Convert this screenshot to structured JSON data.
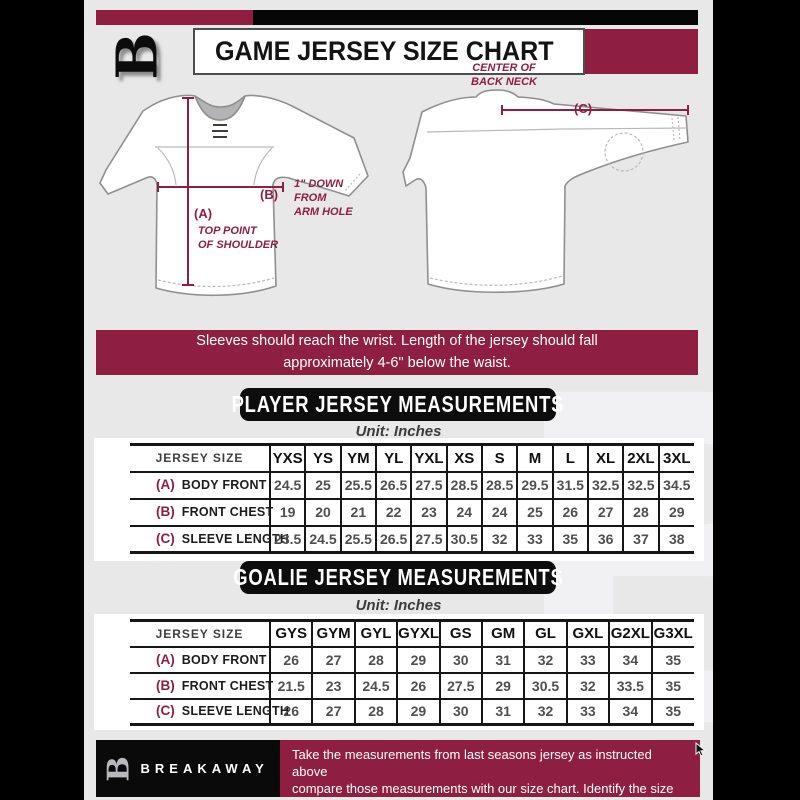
{
  "colors": {
    "maroon": "#8e1f43",
    "banner_black": "#0d0d0d",
    "background": "#e8e8e9",
    "side_band": "#000000"
  },
  "header": {
    "title": "GAME JERSEY SIZE CHART",
    "logo": "breakaway-b-logo",
    "logo_glyph": "B"
  },
  "diagram": {
    "front_view": {
      "a_key": "(A)",
      "a_label": "TOP POINT\nOF SHOULDER",
      "b_key": "(B)",
      "b_label": "1\" DOWN\nFROM\nARM HOLE"
    },
    "back_view": {
      "c_key": "(C)",
      "c_label": "CENTER OF\nBACK NECK"
    }
  },
  "notice": "Sleeves should reach the wrist. Length of the jersey should fall\napproximately 4-6\" below the waist.",
  "player_table": {
    "title": "PLAYER JERSEY MEASUREMENTS",
    "unit_label": "Unit: Inches",
    "size_header": "JERSEY SIZE",
    "sizes": [
      "YXS",
      "YS",
      "YM",
      "YL",
      "YXL",
      "XS",
      "S",
      "M",
      "L",
      "XL",
      "2XL",
      "3XL"
    ],
    "rows": [
      {
        "key": "(A)",
        "label": "BODY FRONT",
        "values": [
          "24.5",
          "25",
          "25.5",
          "26.5",
          "27.5",
          "28.5",
          "28.5",
          "29.5",
          "31.5",
          "32.5",
          "32.5",
          "34.5"
        ]
      },
      {
        "key": "(B)",
        "label": "FRONT CHEST",
        "values": [
          "19",
          "20",
          "21",
          "22",
          "23",
          "24",
          "24",
          "25",
          "26",
          "27",
          "28",
          "29"
        ]
      },
      {
        "key": "(C)",
        "label": "SLEEVE LENGTH",
        "values": [
          "23.5",
          "24.5",
          "25.5",
          "26.5",
          "27.5",
          "30.5",
          "32",
          "33",
          "35",
          "36",
          "37",
          "38"
        ]
      }
    ]
  },
  "goalie_table": {
    "title": "GOALIE JERSEY MEASUREMENTS",
    "unit_label": "Unit: Inches",
    "size_header": "JERSEY SIZE",
    "sizes": [
      "GYS",
      "GYM",
      "GYL",
      "GYXL",
      "GS",
      "GM",
      "GL",
      "GXL",
      "G2XL",
      "G3XL"
    ],
    "rows": [
      {
        "key": "(A)",
        "label": "BODY FRONT",
        "values": [
          "26",
          "27",
          "28",
          "29",
          "30",
          "31",
          "32",
          "33",
          "34",
          "35"
        ]
      },
      {
        "key": "(B)",
        "label": "FRONT CHEST",
        "values": [
          "21.5",
          "23",
          "24.5",
          "26",
          "27.5",
          "29",
          "30.5",
          "32",
          "33.5",
          "35"
        ]
      },
      {
        "key": "(C)",
        "label": "SLEEVE LENGTH",
        "values": [
          "26",
          "27",
          "28",
          "29",
          "30",
          "31",
          "32",
          "33",
          "34",
          "35"
        ]
      }
    ]
  },
  "footer": {
    "brand": "BREAKAWAY",
    "logo_glyph": "B",
    "text": "Take the measurements from last seasons jersey as instructed above\ncompare those measurements  with our size chart. Identify the size\non the chart, if you need a larger size move up the scale on the chart"
  }
}
